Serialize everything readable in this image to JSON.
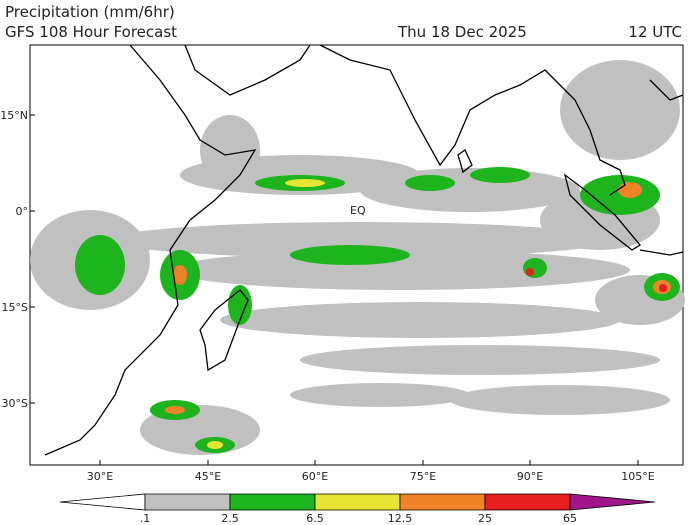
{
  "header": {
    "title": "Precipitation (mm/6hr)",
    "subtitle": "GFS 108 Hour Forecast",
    "date": "Thu 18 Dec 2025",
    "time": "12 UTC"
  },
  "map": {
    "lat_labels": [
      "15°N",
      "0°",
      "15°S",
      "30°S"
    ],
    "lon_labels": [
      "30°E",
      "45°E",
      "60°E",
      "75°E",
      "90°E",
      "105°E"
    ],
    "annotation": "EQ"
  },
  "colorbar": {
    "labels": [
      ".1",
      "2.5",
      "6.5",
      "12.5",
      "25",
      "65"
    ],
    "colors": [
      "#ffffff",
      "#c0c0c0",
      "#1eb41e",
      "#e6e632",
      "#f08228",
      "#e61e1e",
      "#a0148c"
    ]
  }
}
